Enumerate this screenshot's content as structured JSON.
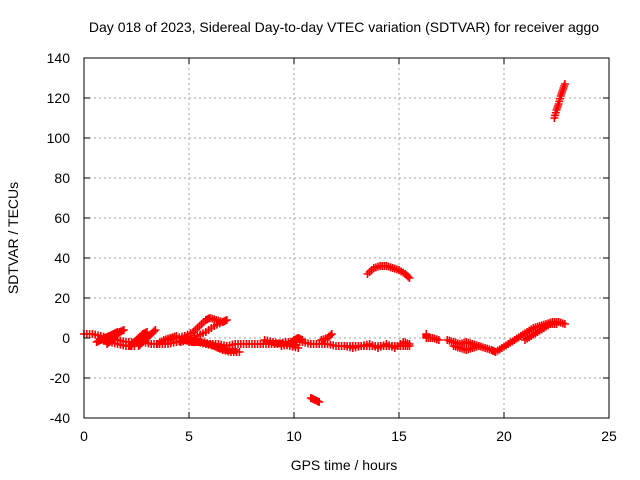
{
  "chart_data": {
    "type": "scatter",
    "title": "Day 018 of 2023, Sidereal Day-to-day VTEC variation (SDTVAR) for receiver aggo",
    "xlabel": "GPS time / hours",
    "ylabel": "SDTVAR / TECUs",
    "xlim": [
      0,
      25
    ],
    "ylim": [
      -40,
      140
    ],
    "xticks": [
      0,
      5,
      10,
      15,
      20,
      25
    ],
    "yticks": [
      -40,
      -20,
      0,
      20,
      40,
      60,
      80,
      100,
      120,
      140
    ],
    "grid": true,
    "marker": "+",
    "series": [
      {
        "name": "SDTVAR",
        "color": "#ff0000",
        "segments": [
          [
            [
              0.0,
              2
            ],
            [
              0.4,
              2
            ],
            [
              0.8,
              1
            ],
            [
              1.2,
              0
            ],
            [
              1.6,
              -1
            ],
            [
              2.0,
              -2
            ],
            [
              2.4,
              -2
            ],
            [
              2.8,
              -2
            ],
            [
              3.2,
              -3
            ],
            [
              3.6,
              -3
            ],
            [
              4.0,
              -3
            ],
            [
              4.4,
              -2
            ],
            [
              4.8,
              -1
            ],
            [
              5.2,
              -2
            ],
            [
              5.6,
              -2
            ],
            [
              6.0,
              -3
            ],
            [
              6.4,
              -3
            ],
            [
              6.8,
              -4
            ],
            [
              7.2,
              -3
            ],
            [
              7.6,
              -3
            ],
            [
              8.0,
              -3
            ],
            [
              8.4,
              -3
            ],
            [
              8.8,
              -3
            ],
            [
              9.2,
              -3
            ],
            [
              9.6,
              -2
            ],
            [
              10.0,
              -2
            ],
            [
              10.4,
              -2
            ],
            [
              10.8,
              -3
            ],
            [
              11.2,
              -3
            ],
            [
              11.6,
              -3
            ],
            [
              12.0,
              -4
            ],
            [
              12.4,
              -4
            ],
            [
              12.8,
              -4
            ],
            [
              13.2,
              -4
            ],
            [
              13.6,
              -4
            ],
            [
              14.0,
              -4
            ],
            [
              14.4,
              -4
            ],
            [
              14.8,
              -4
            ],
            [
              15.2,
              -4
            ],
            [
              15.5,
              -4
            ]
          ],
          [
            [
              0.6,
              -2
            ],
            [
              0.8,
              -1
            ],
            [
              1.0,
              0
            ],
            [
              1.2,
              1
            ],
            [
              1.4,
              2
            ],
            [
              1.6,
              3
            ]
          ],
          [
            [
              1.1,
              -3
            ],
            [
              1.3,
              -1
            ],
            [
              1.5,
              1
            ],
            [
              1.7,
              3
            ],
            [
              1.9,
              4
            ]
          ],
          [
            [
              2.2,
              -4
            ],
            [
              2.4,
              -2
            ],
            [
              2.6,
              0
            ],
            [
              2.8,
              2
            ],
            [
              3.0,
              3
            ]
          ],
          [
            [
              2.6,
              -4
            ],
            [
              2.8,
              -2
            ],
            [
              3.0,
              0
            ],
            [
              3.2,
              2
            ],
            [
              3.4,
              4
            ]
          ],
          [
            [
              0.8,
              -1
            ],
            [
              1.2,
              -2
            ],
            [
              1.6,
              -3
            ],
            [
              2.0,
              -4
            ],
            [
              2.4,
              -4
            ]
          ],
          [
            [
              3.5,
              -3
            ],
            [
              3.8,
              -1
            ],
            [
              4.1,
              0
            ],
            [
              4.4,
              1
            ]
          ],
          [
            [
              4.0,
              -1
            ],
            [
              4.4,
              0
            ],
            [
              4.8,
              1
            ],
            [
              5.2,
              3
            ],
            [
              5.5,
              6
            ],
            [
              5.8,
              9
            ],
            [
              6.0,
              10
            ],
            [
              6.3,
              9
            ],
            [
              6.6,
              8
            ]
          ],
          [
            [
              4.6,
              -2
            ],
            [
              5.0,
              -1
            ],
            [
              5.4,
              1
            ],
            [
              5.8,
              3
            ],
            [
              6.2,
              6
            ],
            [
              6.6,
              8
            ],
            [
              6.8,
              9
            ]
          ],
          [
            [
              5.0,
              -2
            ],
            [
              5.4,
              -2
            ],
            [
              5.8,
              -3
            ],
            [
              6.2,
              -4
            ],
            [
              6.6,
              -6
            ],
            [
              7.0,
              -7
            ],
            [
              7.4,
              -7
            ]
          ],
          [
            [
              5.6,
              -2
            ],
            [
              6.0,
              -3
            ],
            [
              6.4,
              -5
            ],
            [
              6.8,
              -6
            ],
            [
              7.2,
              -6
            ]
          ],
          [
            [
              8.6,
              -1
            ],
            [
              9.0,
              -2
            ],
            [
              9.4,
              -3
            ],
            [
              9.8,
              -4
            ],
            [
              10.2,
              -5
            ]
          ],
          [
            [
              9.4,
              -4
            ],
            [
              9.8,
              -3
            ],
            [
              10.0,
              -1
            ],
            [
              10.2,
              0
            ],
            [
              10.4,
              -1
            ]
          ],
          [
            [
              11.3,
              -1
            ],
            [
              11.6,
              0
            ],
            [
              11.8,
              2
            ]
          ],
          [
            [
              12.4,
              -4
            ],
            [
              12.8,
              -5
            ],
            [
              13.2,
              -4
            ],
            [
              13.6,
              -3
            ],
            [
              14.0,
              -5
            ],
            [
              14.4,
              -3
            ],
            [
              14.8,
              -5
            ],
            [
              15.2,
              -2
            ],
            [
              15.5,
              -3
            ]
          ],
          [
            [
              13.5,
              32
            ],
            [
              13.8,
              35
            ],
            [
              14.1,
              36
            ],
            [
              14.4,
              36
            ],
            [
              14.7,
              35
            ],
            [
              15.0,
              34
            ],
            [
              15.3,
              32
            ],
            [
              15.5,
              30
            ]
          ],
          [
            [
              10.8,
              -30
            ],
            [
              11.0,
              -31
            ],
            [
              11.2,
              -32
            ]
          ],
          [
            [
              16.3,
              2
            ],
            [
              16.3,
              0
            ],
            [
              16.6,
              0
            ],
            [
              16.9,
              -1
            ]
          ],
          [
            [
              17.3,
              -1
            ],
            [
              17.6,
              -2
            ],
            [
              17.9,
              -3
            ],
            [
              18.2,
              -2
            ],
            [
              18.5,
              -3
            ],
            [
              18.8,
              -4
            ],
            [
              19.1,
              -5
            ],
            [
              19.4,
              -6
            ],
            [
              19.6,
              -7
            ],
            [
              19.9,
              -5
            ],
            [
              20.2,
              -3
            ],
            [
              20.5,
              -1
            ],
            [
              20.8,
              1
            ],
            [
              21.1,
              3
            ],
            [
              21.4,
              5
            ],
            [
              21.7,
              6
            ],
            [
              22.0,
              7
            ],
            [
              22.3,
              8
            ],
            [
              22.6,
              8
            ],
            [
              22.9,
              7
            ]
          ],
          [
            [
              21.0,
              -1
            ],
            [
              21.3,
              1
            ],
            [
              21.6,
              3
            ],
            [
              21.9,
              5
            ],
            [
              22.2,
              7
            ],
            [
              22.5,
              7
            ]
          ],
          [
            [
              17.6,
              -4
            ],
            [
              17.9,
              -5
            ],
            [
              18.2,
              -6
            ],
            [
              18.5,
              -5
            ],
            [
              18.8,
              -4
            ]
          ],
          [
            [
              22.4,
              110
            ],
            [
              22.5,
              114
            ],
            [
              22.6,
              117
            ],
            [
              22.7,
              121
            ],
            [
              22.8,
              124
            ],
            [
              22.9,
              127
            ]
          ]
        ]
      }
    ]
  }
}
